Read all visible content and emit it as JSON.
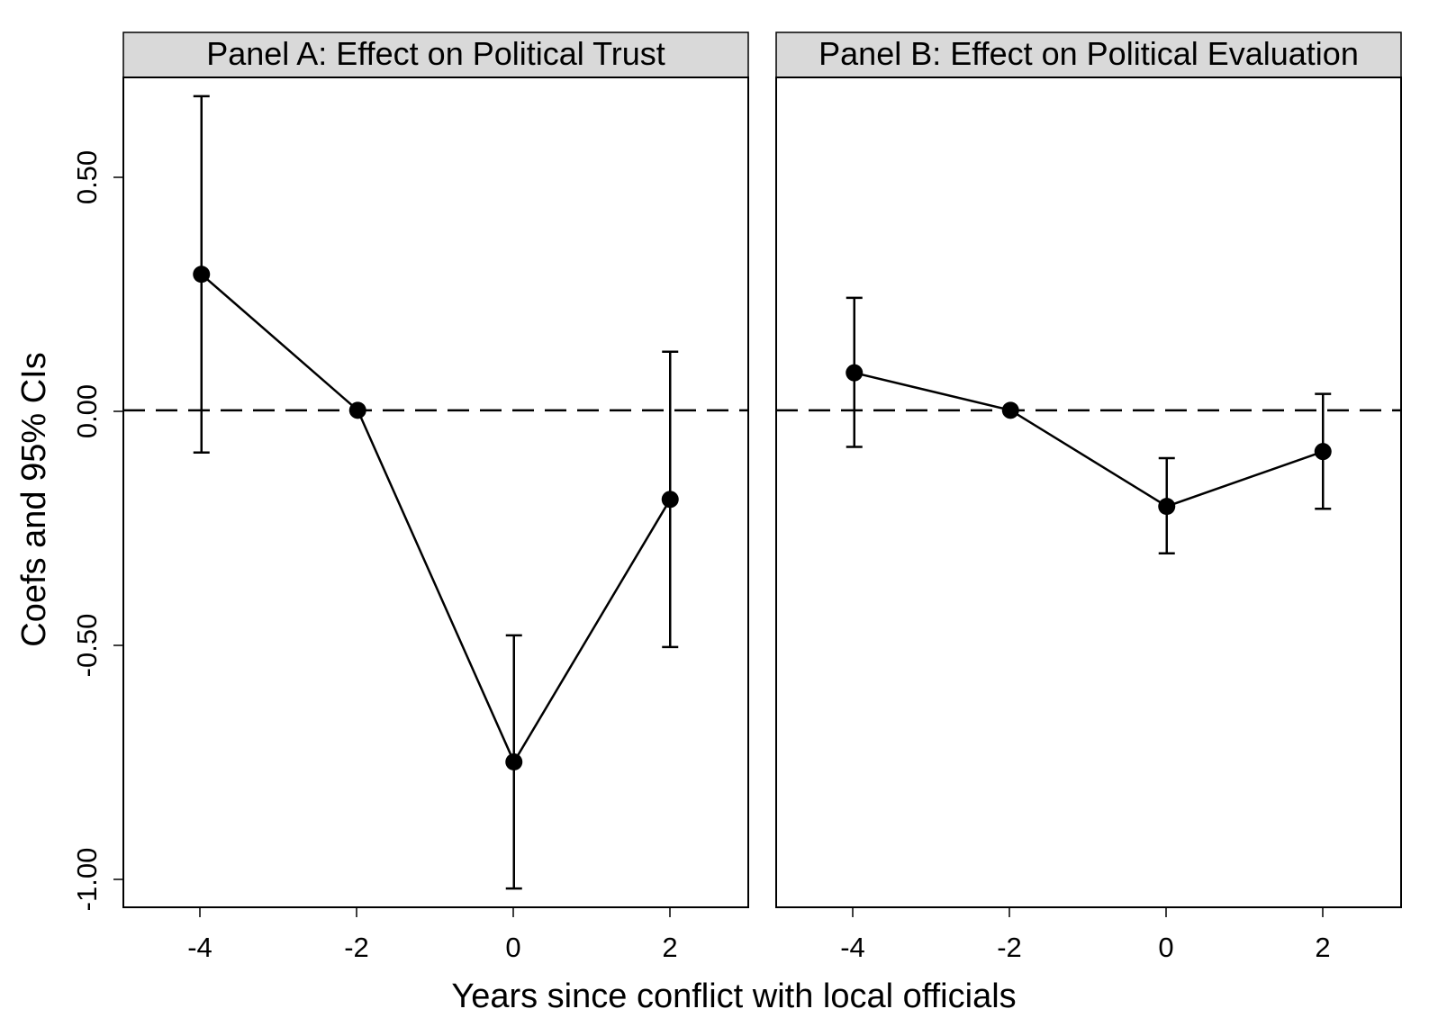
{
  "chart_data": {
    "type": "scatter",
    "layout": "faceted",
    "shared_ylabel": "Coefs and 95% CIs",
    "shared_xlabel": "Years since conflict with local officials",
    "x_ticks": [
      "-4",
      "-2",
      "0",
      "2"
    ],
    "y_ticks": [
      "0.50",
      "0.00",
      "-0.50",
      "-1.00"
    ],
    "xlim": [
      -5,
      3
    ],
    "ylim": [
      -1.06,
      0.71
    ],
    "reference_line": {
      "y": 0,
      "style": "dashed"
    },
    "grid": false,
    "legend": "none",
    "panels": [
      {
        "title": "Panel A: Effect on Political Trust",
        "points": [
          {
            "x": -4,
            "y": 0.29,
            "lo": -0.09,
            "hi": 0.67
          },
          {
            "x": -2,
            "y": 0.0,
            "lo": null,
            "hi": null
          },
          {
            "x": 0,
            "y": -0.75,
            "lo": -1.02,
            "hi": -0.48
          },
          {
            "x": 2,
            "y": -0.19,
            "lo": -0.505,
            "hi": 0.125
          }
        ]
      },
      {
        "title": "Panel B: Effect on Political Evaluation",
        "points": [
          {
            "x": -4,
            "y": 0.08,
            "lo": -0.078,
            "hi": 0.24
          },
          {
            "x": -2,
            "y": 0.0,
            "lo": null,
            "hi": null
          },
          {
            "x": 0,
            "y": -0.205,
            "lo": -0.305,
            "hi": -0.102
          },
          {
            "x": 2,
            "y": -0.088,
            "lo": -0.21,
            "hi": 0.035
          }
        ]
      }
    ]
  }
}
